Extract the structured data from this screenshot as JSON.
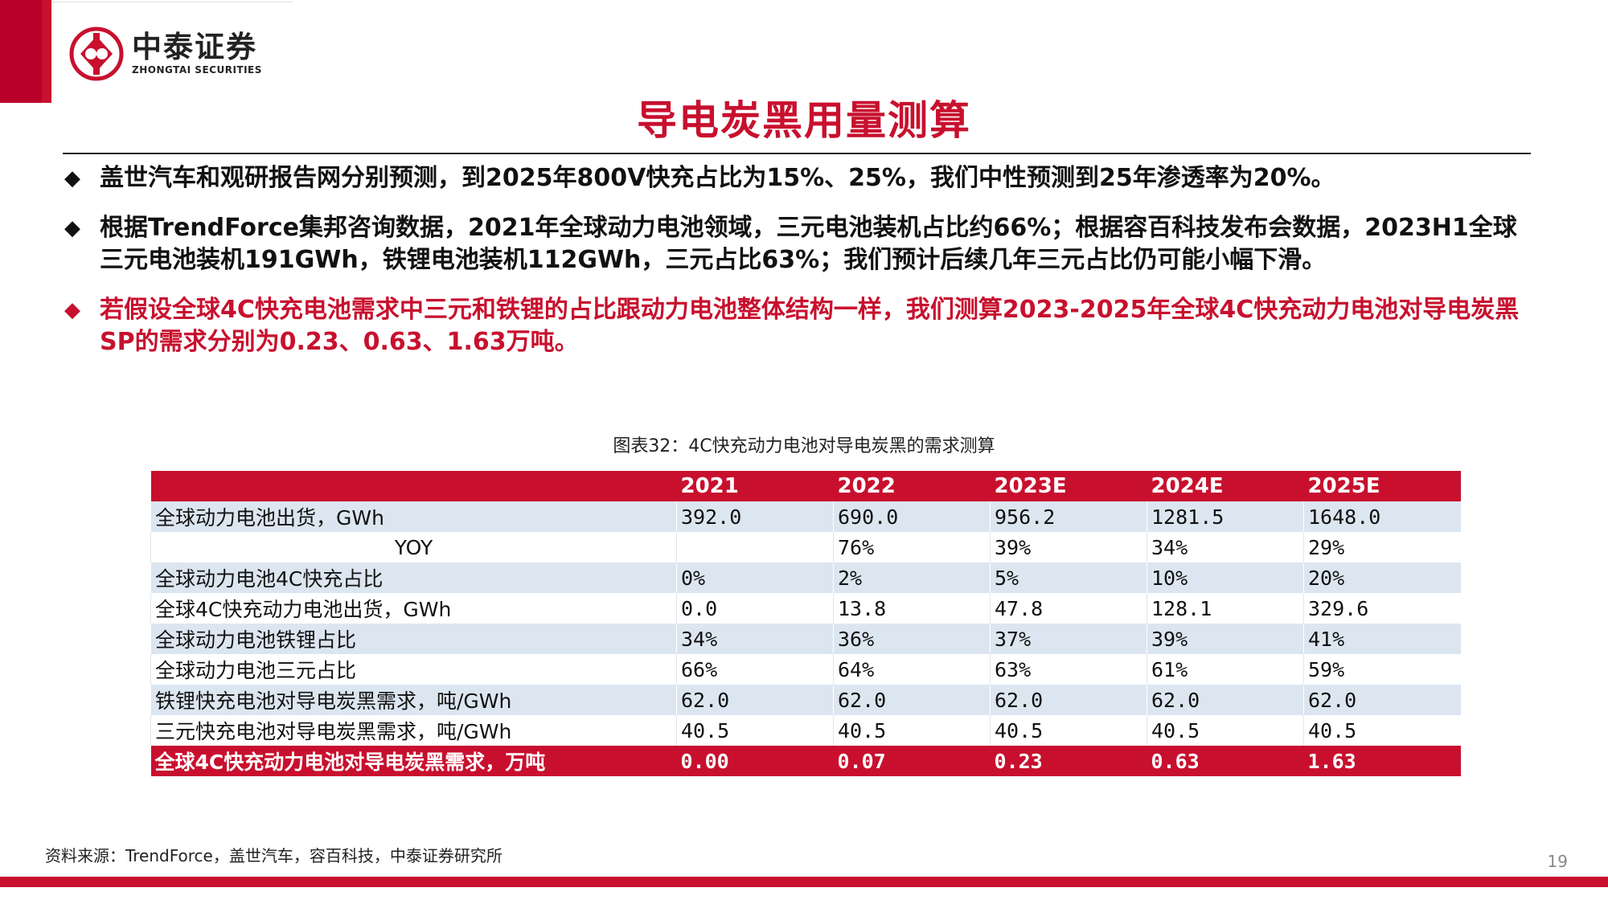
{
  "brand": {
    "name_cn": "中泰证券",
    "name_en": "ZHONGTAI SECURITIES",
    "color": "#c8102e"
  },
  "page_title": "导电炭黑用量测算",
  "bullets": [
    {
      "text": "盖世汽车和观研报告网分别预测，到2025年800V快充占比为15%、25%，我们中性预测到25年渗透率为20%。",
      "highlight": false
    },
    {
      "text": "根据TrendForce集邦咨询数据，2021年全球动力电池领域，三元电池装机占比约66%；根据容百科技发布会数据，2023H1全球三元电池装机191GWh，铁锂电池装机112GWh，三元占比63%；我们预计后续几年三元占比仍可能小幅下滑。",
      "highlight": false
    },
    {
      "text": "若假设全球4C快充电池需求中三元和铁锂的占比跟动力电池整体结构一样，我们测算2023-2025年全球4C快充动力电池对导电炭黑SP的需求分别为0.23、0.63、1.63万吨。",
      "highlight": true
    }
  ],
  "bullet_icon": "◆",
  "figure_caption": "图表32：4C快充动力电池对导电炭黑的需求测算",
  "table": {
    "headers": [
      "",
      "2021",
      "2022",
      "2023E",
      "2024E",
      "2025E"
    ],
    "rows": [
      {
        "label": "全球动力电池出货，GWh",
        "values": [
          "392.0",
          "690.0",
          "956.2",
          "1281.5",
          "1648.0"
        ]
      },
      {
        "label": "YOY",
        "values": [
          "",
          "76%",
          "39%",
          "34%",
          "29%"
        ]
      },
      {
        "label": "全球动力电池4C快充占比",
        "values": [
          "0%",
          "2%",
          "5%",
          "10%",
          "20%"
        ]
      },
      {
        "label": "全球4C快充动力电池出货，GWh",
        "values": [
          "0.0",
          "13.8",
          "47.8",
          "128.1",
          "329.6"
        ]
      },
      {
        "label": "全球动力电池铁锂占比",
        "values": [
          "34%",
          "36%",
          "37%",
          "39%",
          "41%"
        ]
      },
      {
        "label": "全球动力电池三元占比",
        "values": [
          "66%",
          "64%",
          "63%",
          "61%",
          "59%"
        ]
      },
      {
        "label": "铁锂快充电池对导电炭黑需求，吨/GWh",
        "values": [
          "62.0",
          "62.0",
          "62.0",
          "62.0",
          "62.0"
        ]
      },
      {
        "label": "三元快充电池对导电炭黑需求，吨/GWh",
        "values": [
          "40.5",
          "40.5",
          "40.5",
          "40.5",
          "40.5"
        ]
      },
      {
        "label": "全球4C快充动力电池对导电炭黑需求，万吨",
        "values": [
          "0.00",
          "0.07",
          "0.23",
          "0.63",
          "1.63"
        ]
      }
    ]
  },
  "source": "资料来源：TrendForce，盖世汽车，容百科技，中泰证券研究所",
  "page_number": "19"
}
